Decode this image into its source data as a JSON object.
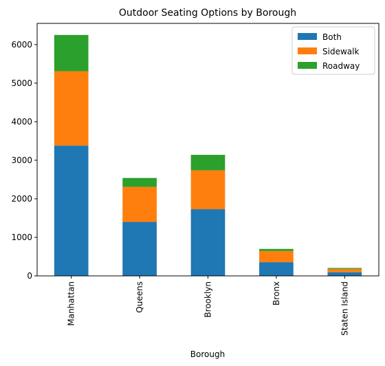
{
  "chart_data": {
    "type": "bar",
    "stacked": true,
    "title": "Outdoor Seating Options by Borough",
    "xlabel": "Borough",
    "ylabel": "",
    "categories": [
      "Manhattan",
      "Queens",
      "Brooklyn",
      "Bronx",
      "Staten Island"
    ],
    "series": [
      {
        "name": "Both",
        "color": "#1f77b4",
        "values": [
          3380,
          1400,
          1730,
          355,
          95
        ]
      },
      {
        "name": "Sidewalk",
        "color": "#ff7f0e",
        "values": [
          1930,
          910,
          1010,
          290,
          85
        ]
      },
      {
        "name": "Roadway",
        "color": "#2ca02c",
        "values": [
          940,
          230,
          400,
          55,
          25
        ]
      }
    ],
    "ylim": [
      0,
      6550
    ],
    "yticks": [
      0,
      1000,
      2000,
      3000,
      4000,
      5000,
      6000
    ],
    "grid": false,
    "legend_position": "top-right"
  }
}
